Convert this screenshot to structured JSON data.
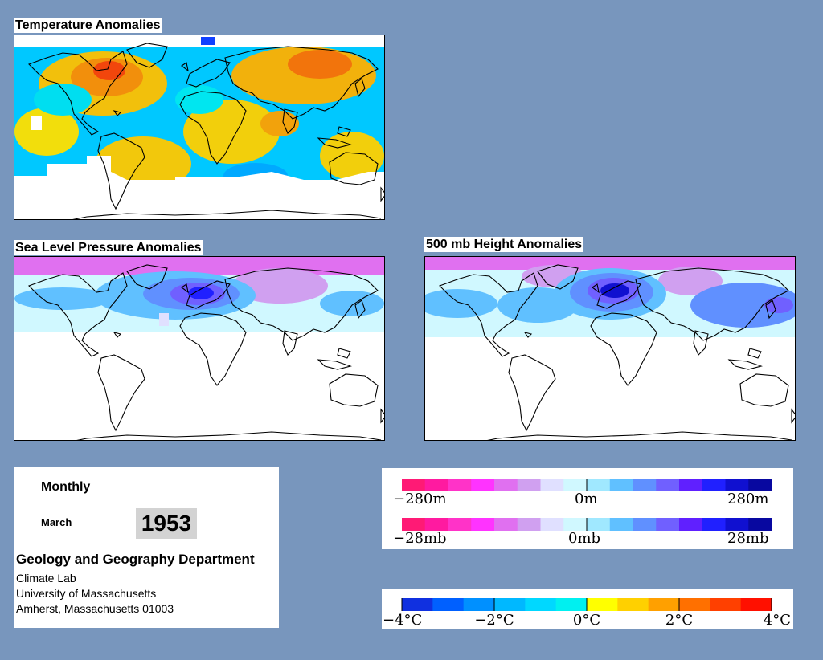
{
  "panels": {
    "temperature": {
      "title": "Temperature Anomalies"
    },
    "slp": {
      "title": "Sea Level Pressure Anomalies"
    },
    "height": {
      "title": "500 mb Height Anomalies"
    }
  },
  "info": {
    "mode": "Monthly",
    "month": "March",
    "year": "1953",
    "department": "Geology and Geography Department",
    "lab": "Climate Lab",
    "university": "University of Massachusetts",
    "address": "Amherst, Massachusetts 01003"
  },
  "legend_height": {
    "left": "−280m",
    "mid": "0m",
    "right": "280m",
    "colors": [
      "#ff1a75",
      "#ff1aa0",
      "#ff33c8",
      "#ff33ff",
      "#e070f0",
      "#d0a0f0",
      "#e0e0ff",
      "#d0f8ff",
      "#a0e8ff",
      "#60c0ff",
      "#6090ff",
      "#7060ff",
      "#6020ff",
      "#2020ff",
      "#1010d0",
      "#0808a0"
    ]
  },
  "legend_pressure": {
    "left": "−28mb",
    "mid": "0mb",
    "right": "28mb",
    "colors": [
      "#ff1a75",
      "#ff1aa0",
      "#ff33c8",
      "#ff33ff",
      "#e070f0",
      "#d0a0f0",
      "#e0e0ff",
      "#d0f8ff",
      "#a0e8ff",
      "#60c0ff",
      "#6090ff",
      "#7060ff",
      "#6020ff",
      "#2020ff",
      "#1010d0",
      "#0808a0"
    ]
  },
  "legend_temp": {
    "labels": [
      "−4°C",
      "−2°C",
      "0°C",
      "2°C",
      "4°C"
    ],
    "colors": [
      "#1030e0",
      "#0060ff",
      "#0090ff",
      "#00b8ff",
      "#00d8ff",
      "#00f0f0",
      "#ffff00",
      "#ffd000",
      "#ffa000",
      "#ff7000",
      "#ff4000",
      "#ff1000"
    ]
  }
}
